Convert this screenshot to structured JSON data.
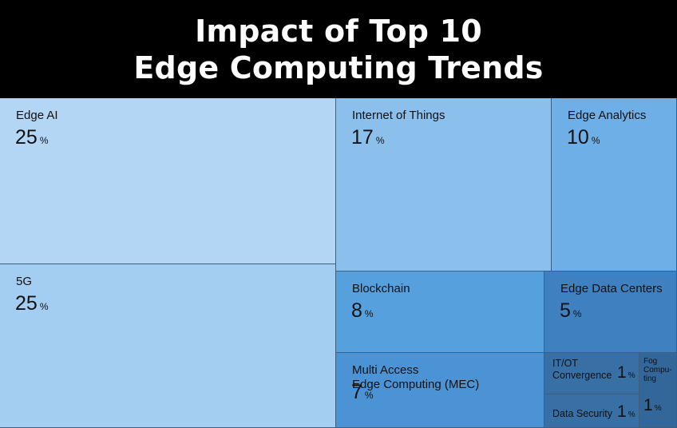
{
  "header": {
    "title_line1": "Impact of Top 10",
    "title_line2": "Edge Computing Trends"
  },
  "chart_data": {
    "type": "treemap",
    "title": "Impact of Top 10 Edge Computing Trends",
    "unit": "%",
    "items": [
      {
        "name": "Edge AI",
        "value": 25,
        "color": "#b3d6f4"
      },
      {
        "name": "5G",
        "value": 25,
        "color": "#a3cdf1"
      },
      {
        "name": "Internet of Things",
        "value": 17,
        "color": "#8bc0ed"
      },
      {
        "name": "Edge Analytics",
        "value": 10,
        "color": "#6eafe7"
      },
      {
        "name": "Blockchain",
        "value": 8,
        "color": "#56a0de"
      },
      {
        "name": "Edge Data Centers",
        "value": 5,
        "color": "#3f81c0"
      },
      {
        "name": "Multi Access\nEdge Computing (MEC)",
        "value": 7,
        "color": "#4b93d4"
      },
      {
        "name": "IT/OT\nConvergence",
        "value": 1,
        "color": "#3870a6"
      },
      {
        "name": "Data Security",
        "value": 1,
        "color": "#3870a6"
      },
      {
        "name": "Fog\nCompu-\nting",
        "value": 1,
        "color": "#33679a"
      }
    ]
  }
}
